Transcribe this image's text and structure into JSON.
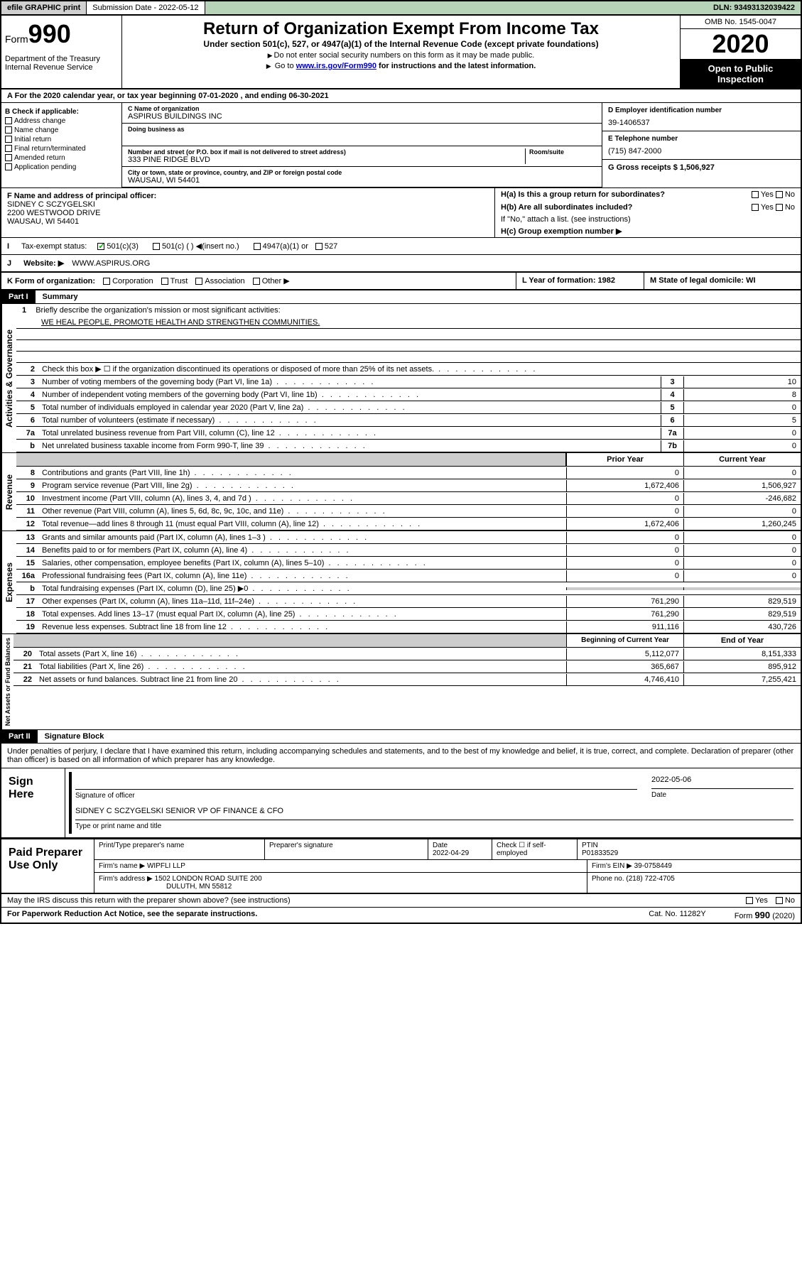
{
  "topbar": {
    "efile": "efile GRAPHIC print",
    "submission_label": "Submission Date - 2022-05-12",
    "dln": "DLN: 93493132039422"
  },
  "header": {
    "form_label": "Form",
    "form_num": "990",
    "dept": "Department of the Treasury\nInternal Revenue Service",
    "title": "Return of Organization Exempt From Income Tax",
    "subtitle": "Under section 501(c), 527, or 4947(a)(1) of the Internal Revenue Code (except private foundations)",
    "note1": "Do not enter social security numbers on this form as it may be made public.",
    "note2_pre": "Go to ",
    "note2_link": "www.irs.gov/Form990",
    "note2_post": " for instructions and the latest information.",
    "omb": "OMB No. 1545-0047",
    "year": "2020",
    "inspect": "Open to Public Inspection"
  },
  "section_a": "For the 2020 calendar year, or tax year beginning 07-01-2020    , and ending 06-30-2021",
  "check_b": {
    "label": "B Check if applicable:",
    "opts": [
      "Address change",
      "Name change",
      "Initial return",
      "Final return/terminated",
      "Amended return",
      "Application pending"
    ]
  },
  "org": {
    "name_label": "C Name of organization",
    "name": "ASPIRUS BUILDINGS INC",
    "dba_label": "Doing business as",
    "addr_label": "Number and street (or P.O. box if mail is not delivered to street address)",
    "room_label": "Room/suite",
    "addr": "333 PINE RIDGE BLVD",
    "city_label": "City or town, state or province, country, and ZIP or foreign postal code",
    "city": "WAUSAU, WI  54401"
  },
  "ein": {
    "label": "D Employer identification number",
    "value": "39-1406537"
  },
  "phone": {
    "label": "E Telephone number",
    "value": "(715) 847-2000"
  },
  "gross": {
    "label": "G Gross receipts $ 1,506,927"
  },
  "officer": {
    "label": "F  Name and address of principal officer:",
    "name": "SIDNEY C SCZYGELSKI",
    "addr1": "2200 WESTWOOD DRIVE",
    "addr2": "WAUSAU, WI  54401"
  },
  "h": {
    "ha_label": "H(a)  Is this a group return for subordinates?",
    "ha_yes": "Yes",
    "ha_no": "No",
    "hb_label": "H(b)  Are all subordinates included?",
    "hb_note": "If \"No,\" attach a list. (see instructions)",
    "hc_label": "H(c)  Group exemption number ▶"
  },
  "tax_status": {
    "label": "Tax-exempt status:",
    "o1": "501(c)(3)",
    "o2": "501(c) (  ) ◀(insert no.)",
    "o3": "4947(a)(1) or",
    "o4": "527"
  },
  "website": {
    "label": "Website: ▶",
    "value": "WWW.ASPIRUS.ORG"
  },
  "form_org": {
    "label": "K Form of organization:",
    "opts": [
      "Corporation",
      "Trust",
      "Association",
      "Other ▶"
    ],
    "year_label": "L Year of formation: 1982",
    "state_label": "M State of legal domicile: WI"
  },
  "part1": {
    "label": "Part I",
    "title": "Summary"
  },
  "mission": {
    "num": "1",
    "label": "Briefly describe the organization's mission or most significant activities:",
    "text": "WE HEAL PEOPLE, PROMOTE HEALTH AND STRENGTHEN COMMUNITIES."
  },
  "gov_lines": [
    {
      "n": "2",
      "t": "Check this box ▶ ☐  if the organization discontinued its operations or disposed of more than 25% of its net assets."
    },
    {
      "n": "3",
      "t": "Number of voting members of the governing body (Part VI, line 1a)",
      "c": "3",
      "v": "10"
    },
    {
      "n": "4",
      "t": "Number of independent voting members of the governing body (Part VI, line 1b)",
      "c": "4",
      "v": "8"
    },
    {
      "n": "5",
      "t": "Total number of individuals employed in calendar year 2020 (Part V, line 2a)",
      "c": "5",
      "v": "0"
    },
    {
      "n": "6",
      "t": "Total number of volunteers (estimate if necessary)",
      "c": "6",
      "v": "5"
    },
    {
      "n": "7a",
      "t": "Total unrelated business revenue from Part VIII, column (C), line 12",
      "c": "7a",
      "v": "0"
    },
    {
      "n": "b",
      "t": "Net unrelated business taxable income from Form 990-T, line 39",
      "c": "7b",
      "v": "0"
    }
  ],
  "two_col_hdr": {
    "prior": "Prior Year",
    "current": "Current Year"
  },
  "rev_lines": [
    {
      "n": "8",
      "t": "Contributions and grants (Part VIII, line 1h)",
      "p": "0",
      "c": "0"
    },
    {
      "n": "9",
      "t": "Program service revenue (Part VIII, line 2g)",
      "p": "1,672,406",
      "c": "1,506,927"
    },
    {
      "n": "10",
      "t": "Investment income (Part VIII, column (A), lines 3, 4, and 7d )",
      "p": "0",
      "c": "-246,682"
    },
    {
      "n": "11",
      "t": "Other revenue (Part VIII, column (A), lines 5, 6d, 8c, 9c, 10c, and 11e)",
      "p": "0",
      "c": "0"
    },
    {
      "n": "12",
      "t": "Total revenue—add lines 8 through 11 (must equal Part VIII, column (A), line 12)",
      "p": "1,672,406",
      "c": "1,260,245"
    }
  ],
  "exp_lines": [
    {
      "n": "13",
      "t": "Grants and similar amounts paid (Part IX, column (A), lines 1–3 )",
      "p": "0",
      "c": "0"
    },
    {
      "n": "14",
      "t": "Benefits paid to or for members (Part IX, column (A), line 4)",
      "p": "0",
      "c": "0"
    },
    {
      "n": "15",
      "t": "Salaries, other compensation, employee benefits (Part IX, column (A), lines 5–10)",
      "p": "0",
      "c": "0"
    },
    {
      "n": "16a",
      "t": "Professional fundraising fees (Part IX, column (A), line 11e)",
      "p": "0",
      "c": "0"
    },
    {
      "n": "b",
      "t": "Total fundraising expenses (Part IX, column (D), line 25) ▶0",
      "p": "",
      "c": "",
      "gray": true
    },
    {
      "n": "17",
      "t": "Other expenses (Part IX, column (A), lines 11a–11d, 11f–24e)",
      "p": "761,290",
      "c": "829,519"
    },
    {
      "n": "18",
      "t": "Total expenses. Add lines 13–17 (must equal Part IX, column (A), line 25)",
      "p": "761,290",
      "c": "829,519"
    },
    {
      "n": "19",
      "t": "Revenue less expenses. Subtract line 18 from line 12",
      "p": "911,116",
      "c": "430,726"
    }
  ],
  "net_hdr": {
    "begin": "Beginning of Current Year",
    "end": "End of Year"
  },
  "net_lines": [
    {
      "n": "20",
      "t": "Total assets (Part X, line 16)",
      "p": "5,112,077",
      "c": "8,151,333"
    },
    {
      "n": "21",
      "t": "Total liabilities (Part X, line 26)",
      "p": "365,667",
      "c": "895,912"
    },
    {
      "n": "22",
      "t": "Net assets or fund balances. Subtract line 21 from line 20",
      "p": "4,746,410",
      "c": "7,255,421"
    }
  ],
  "side_labels": {
    "gov": "Activities & Governance",
    "rev": "Revenue",
    "exp": "Expenses",
    "net": "Net Assets or Fund Balances"
  },
  "part2": {
    "label": "Part II",
    "title": "Signature Block"
  },
  "sig": {
    "perjury": "Under penalties of perjury, I declare that I have examined this return, including accompanying schedules and statements, and to the best of my knowledge and belief, it is true, correct, and complete. Declaration of preparer (other than officer) is based on all information of which preparer has any knowledge.",
    "sign_here": "Sign Here",
    "sig_officer": "Signature of officer",
    "date": "2022-05-06",
    "date_label": "Date",
    "name": "SIDNEY C SCZYGELSKI  SENIOR VP OF FINANCE & CFO",
    "name_label": "Type or print name and title"
  },
  "prep": {
    "label": "Paid Preparer Use Only",
    "h1": "Print/Type preparer's name",
    "h2": "Preparer's signature",
    "h3": "Date",
    "h3v": "2022-04-29",
    "h4": "Check ☐ if self-employed",
    "h5": "PTIN",
    "h5v": "P01833529",
    "firm_label": "Firm's name    ▶",
    "firm": "WIPFLI LLP",
    "ein_label": "Firm's EIN ▶",
    "ein": "39-0758449",
    "addr_label": "Firm's address ▶",
    "addr1": "1502 LONDON ROAD SUITE 200",
    "addr2": "DULUTH, MN  55812",
    "phone_label": "Phone no.",
    "phone": "(218) 722-4705"
  },
  "footer": {
    "discuss": "May the IRS discuss this return with the preparer shown above? (see instructions)",
    "yes": "Yes",
    "no": "No",
    "paperwork": "For Paperwork Reduction Act Notice, see the separate instructions.",
    "cat": "Cat. No. 11282Y",
    "form": "Form 990 (2020)"
  }
}
